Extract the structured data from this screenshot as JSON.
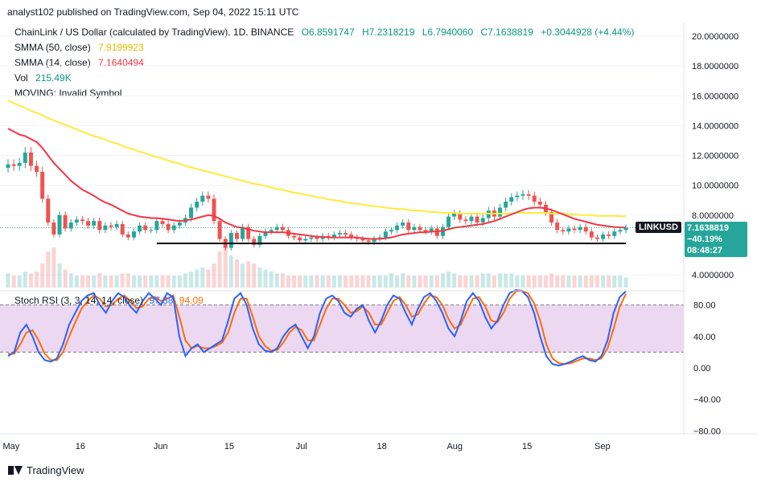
{
  "header": {
    "publisher": "analyst102 published on TradingView.com, Sep 04, 2022 15:11 UTC"
  },
  "legend": {
    "title": "ChainLink / US Dollar (calculated by TradingView), 1D, BINANCE",
    "o": "O6.8591747",
    "h": "H7.2318219",
    "l": "L6.7940060",
    "c": "C7.1638819",
    "change": "+0.3044928 (+4.44%)",
    "sma50_label": "SMMA (50, close)",
    "sma50_value": "7.9199923",
    "sma14_label": "SMMA (14, close)",
    "sma14_value": "7.1640494",
    "vol_label": "Vol",
    "vol_value": "215.49K",
    "moving_label": "MOVING: Invalid Symbol"
  },
  "rsi_legend": {
    "label": "Stoch RSI (3, 3, 14, 14, close)",
    "k": "97.38",
    "d": "94.09"
  },
  "price_tag": {
    "symbol": "LINKUSD",
    "price": "7.1638819",
    "change": "−40.19%",
    "countdown": "08:48:27"
  },
  "footer": {
    "brand": "TradingView"
  },
  "colors": {
    "up": "#26a69a",
    "down": "#ef5350",
    "sma50": "#ffeb3b",
    "sma14": "#f23645",
    "rsi_k": "#2962ff",
    "rsi_d": "#ff6d00",
    "rsi_band": "#e1bee7"
  },
  "chart_data": [
    {
      "type": "candlestick",
      "title": "ChainLink / US Dollar (calculated by TradingView), 1D, BINANCE",
      "x_ticks": [
        "May",
        "16",
        "Jun",
        "15",
        "Jul",
        "18",
        "Aug",
        "15",
        "Sep"
      ],
      "y_ticks": [
        "20.0000000",
        "18.0000000",
        "16.0000000",
        "14.0000000",
        "12.0000000",
        "10.0000000",
        "8.0000000",
        "4.0000000"
      ],
      "ylim": [
        3.3,
        20.5
      ],
      "close": [
        11.4,
        11.3,
        11.5,
        12.2,
        11.3,
        10.9,
        9.1,
        7.5,
        6.7,
        8.0,
        7.1,
        7.5,
        7.7,
        7.6,
        7.3,
        7.6,
        7.0,
        7.3,
        7.2,
        7.4,
        6.7,
        6.5,
        6.9,
        7.3,
        7.0,
        7.0,
        7.6,
        7.4,
        7.0,
        7.3,
        7.5,
        7.8,
        8.5,
        8.9,
        9.3,
        9.1,
        7.6,
        6.4,
        5.8,
        6.8,
        6.4,
        7.2,
        6.4,
        6.0,
        6.6,
        6.9,
        7.0,
        7.2,
        7.0,
        6.6,
        6.5,
        6.3,
        6.4,
        6.5,
        6.4,
        6.6,
        6.5,
        6.7,
        6.8,
        6.7,
        6.5,
        6.4,
        6.3,
        6.2,
        6.4,
        6.5,
        6.9,
        7.0,
        7.3,
        7.5,
        7.0,
        7.2,
        7.0,
        6.9,
        7.1,
        6.6,
        7.2,
        7.9,
        8.1,
        7.7,
        7.6,
        7.9,
        7.5,
        7.8,
        8.3,
        7.9,
        8.5,
        8.9,
        9.2,
        9.3,
        9.4,
        9.3,
        8.9,
        8.7,
        8.2,
        7.5,
        7.0,
        6.9,
        7.1,
        7.0,
        7.2,
        6.9,
        6.5,
        6.4,
        6.7,
        6.6,
        6.9,
        7.0,
        7.16
      ],
      "sma50": [
        15.7,
        15.5,
        15.35,
        15.2,
        15.0,
        14.85,
        14.7,
        14.5,
        14.35,
        14.2,
        14.05,
        13.9,
        13.75,
        13.6,
        13.45,
        13.3,
        13.2,
        13.05,
        12.9,
        12.8,
        12.65,
        12.5,
        12.4,
        12.25,
        12.15,
        12.0,
        11.9,
        11.8,
        11.65,
        11.55,
        11.45,
        11.3,
        11.2,
        11.1,
        11.0,
        10.9,
        10.8,
        10.7,
        10.6,
        10.5,
        10.4,
        10.3,
        10.2,
        10.1,
        10.05,
        9.95,
        9.85,
        9.75,
        9.7,
        9.6,
        9.5,
        9.45,
        9.35,
        9.3,
        9.2,
        9.15,
        9.05,
        9.0,
        8.95,
        8.85,
        8.8,
        8.75,
        8.7,
        8.65,
        8.6,
        8.55,
        8.5,
        8.45,
        8.4,
        8.4,
        8.35,
        8.3,
        8.3,
        8.25,
        8.2,
        8.2,
        8.15,
        8.15,
        8.15,
        8.1,
        8.1,
        8.1,
        8.1,
        8.1,
        8.1,
        8.1,
        8.1,
        8.1,
        8.1,
        8.15,
        8.15,
        8.15,
        8.15,
        8.15,
        8.15,
        8.1,
        8.1,
        8.1,
        8.05,
        8.05,
        8.0,
        8.0,
        8.0,
        7.95,
        7.95,
        7.95,
        7.95,
        7.92,
        7.92
      ],
      "sma14": [
        13.8,
        13.6,
        13.4,
        13.3,
        13.1,
        12.9,
        12.5,
        12.0,
        11.5,
        11.1,
        10.7,
        10.3,
        10.0,
        9.7,
        9.5,
        9.3,
        9.05,
        8.85,
        8.7,
        8.5,
        8.3,
        8.1,
        8.0,
        7.9,
        7.85,
        7.8,
        7.8,
        7.75,
        7.7,
        7.65,
        7.6,
        7.65,
        7.7,
        7.8,
        7.9,
        8.0,
        7.95,
        7.75,
        7.5,
        7.35,
        7.2,
        7.15,
        7.05,
        6.95,
        6.9,
        6.85,
        6.85,
        6.85,
        6.85,
        6.8,
        6.75,
        6.7,
        6.65,
        6.6,
        6.55,
        6.55,
        6.5,
        6.5,
        6.5,
        6.5,
        6.5,
        6.5,
        6.45,
        6.4,
        6.4,
        6.4,
        6.45,
        6.5,
        6.6,
        6.7,
        6.75,
        6.8,
        6.85,
        6.85,
        6.9,
        6.9,
        6.95,
        7.05,
        7.15,
        7.2,
        7.25,
        7.3,
        7.35,
        7.4,
        7.5,
        7.6,
        7.75,
        7.9,
        8.05,
        8.2,
        8.35,
        8.45,
        8.5,
        8.5,
        8.45,
        8.35,
        8.2,
        8.05,
        7.9,
        7.75,
        7.65,
        7.55,
        7.45,
        7.35,
        7.3,
        7.25,
        7.2,
        7.18,
        7.16
      ],
      "support_level": 6.1,
      "volume": [
        0.35,
        0.3,
        0.3,
        0.4,
        0.35,
        0.4,
        0.6,
        0.9,
        1.0,
        0.6,
        0.45,
        0.35,
        0.3,
        0.3,
        0.3,
        0.3,
        0.35,
        0.3,
        0.3,
        0.3,
        0.35,
        0.35,
        0.3,
        0.3,
        0.3,
        0.3,
        0.3,
        0.3,
        0.3,
        0.3,
        0.3,
        0.35,
        0.4,
        0.45,
        0.5,
        0.45,
        0.6,
        0.9,
        1.0,
        0.8,
        0.7,
        0.6,
        0.65,
        0.6,
        0.5,
        0.45,
        0.4,
        0.35,
        0.35,
        0.3,
        0.3,
        0.3,
        0.3,
        0.3,
        0.3,
        0.3,
        0.3,
        0.3,
        0.3,
        0.3,
        0.3,
        0.3,
        0.3,
        0.3,
        0.3,
        0.3,
        0.3,
        0.35,
        0.3,
        0.35,
        0.3,
        0.3,
        0.3,
        0.3,
        0.3,
        0.3,
        0.35,
        0.4,
        0.35,
        0.3,
        0.3,
        0.3,
        0.3,
        0.35,
        0.35,
        0.3,
        0.35,
        0.35,
        0.35,
        0.3,
        0.3,
        0.3,
        0.3,
        0.3,
        0.3,
        0.35,
        0.3,
        0.3,
        0.3,
        0.3,
        0.3,
        0.3,
        0.3,
        0.3,
        0.3,
        0.3,
        0.3,
        0.3,
        0.25
      ]
    },
    {
      "type": "line",
      "title": "Stoch RSI (3, 3, 14, 14, close)",
      "y_ticks": [
        "80.00",
        "40.00",
        "0.00",
        "−40.00",
        "−80.00"
      ],
      "ylim": [
        -100,
        100
      ],
      "bands": [
        20,
        80
      ],
      "series": [
        {
          "name": "K",
          "values": [
            15,
            20,
            45,
            55,
            40,
            20,
            10,
            8,
            12,
            30,
            55,
            70,
            85,
            92,
            95,
            80,
            70,
            85,
            95,
            90,
            78,
            70,
            85,
            95,
            88,
            80,
            95,
            90,
            40,
            15,
            25,
            30,
            20,
            25,
            30,
            35,
            60,
            88,
            95,
            80,
            50,
            30,
            22,
            20,
            25,
            40,
            50,
            55,
            40,
            25,
            40,
            70,
            88,
            92,
            85,
            70,
            65,
            75,
            80,
            60,
            45,
            60,
            80,
            92,
            88,
            70,
            55,
            75,
            90,
            95,
            85,
            70,
            50,
            40,
            60,
            85,
            95,
            85,
            65,
            50,
            60,
            80,
            95,
            99,
            98,
            90,
            70,
            40,
            15,
            5,
            3,
            5,
            8,
            12,
            15,
            10,
            8,
            15,
            35,
            70,
            90,
            97.38
          ]
        },
        {
          "name": "D",
          "values": [
            18,
            18,
            30,
            45,
            48,
            35,
            18,
            10,
            10,
            20,
            40,
            58,
            75,
            85,
            92,
            88,
            78,
            80,
            88,
            92,
            85,
            76,
            78,
            88,
            90,
            85,
            88,
            92,
            65,
            35,
            25,
            28,
            25,
            25,
            28,
            32,
            45,
            70,
            88,
            88,
            65,
            40,
            28,
            22,
            23,
            32,
            45,
            52,
            48,
            35,
            35,
            55,
            75,
            88,
            88,
            80,
            70,
            72,
            78,
            70,
            55,
            55,
            70,
            85,
            90,
            80,
            65,
            68,
            82,
            92,
            90,
            80,
            62,
            50,
            55,
            72,
            88,
            90,
            78,
            60,
            58,
            70,
            88,
            97,
            98,
            95,
            82,
            60,
            30,
            12,
            6,
            5,
            6,
            9,
            12,
            12,
            10,
            12,
            25,
            50,
            78,
            94.09
          ]
        }
      ]
    }
  ]
}
